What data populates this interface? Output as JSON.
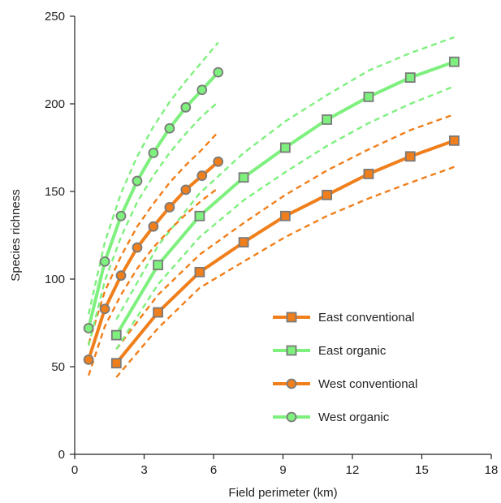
{
  "chart_data": {
    "type": "line",
    "xlabel": "Field perimeter (km)",
    "ylabel": "Species richness",
    "xlim": [
      0,
      18
    ],
    "ylim": [
      0,
      250
    ],
    "xticks": [
      0,
      3,
      6,
      9,
      12,
      15,
      18
    ],
    "yticks": [
      0,
      50,
      100,
      150,
      200,
      250
    ],
    "grid": false,
    "legend_position": "lower-right",
    "colors": {
      "orange": "#f07f1b",
      "green": "#7ef07e",
      "marker_edge": "#7a7a7a"
    },
    "series": [
      {
        "name": "East conventional",
        "color": "#f07f1b",
        "marker": "square",
        "x": [
          1.8,
          3.6,
          5.4,
          7.3,
          9.1,
          10.9,
          12.7,
          14.5,
          16.4
        ],
        "y": [
          52,
          81,
          104,
          121,
          136,
          148,
          160,
          170,
          179
        ],
        "lower": [
          44,
          72,
          95,
          110,
          124,
          136,
          146,
          155,
          164
        ],
        "upper": [
          60,
          91,
          114,
          132,
          148,
          162,
          174,
          185,
          194
        ]
      },
      {
        "name": "East organic",
        "color": "#7ef07e",
        "marker": "square",
        "x": [
          1.8,
          3.6,
          5.4,
          7.3,
          9.1,
          10.9,
          12.7,
          14.5,
          16.4
        ],
        "y": [
          68,
          108,
          136,
          158,
          175,
          191,
          204,
          215,
          224
        ],
        "lower": [
          60,
          97,
          124,
          145,
          161,
          176,
          189,
          200,
          210
        ],
        "upper": [
          77,
          119,
          149,
          172,
          190,
          205,
          219,
          229,
          238
        ]
      },
      {
        "name": "West conventional",
        "color": "#f07f1b",
        "marker": "circle",
        "x": [
          0.6,
          1.3,
          2.0,
          2.7,
          3.4,
          4.1,
          4.8,
          5.5,
          6.2
        ],
        "y": [
          54,
          83,
          102,
          118,
          130,
          141,
          151,
          159,
          167
        ],
        "lower": [
          45,
          73,
          91,
          106,
          118,
          128,
          137,
          145,
          152
        ],
        "upper": [
          63,
          93,
          113,
          130,
          143,
          155,
          165,
          174,
          184
        ]
      },
      {
        "name": "West organic",
        "color": "#7ef07e",
        "marker": "circle",
        "x": [
          0.6,
          1.3,
          2.0,
          2.7,
          3.4,
          4.1,
          4.8,
          5.5,
          6.2
        ],
        "y": [
          72,
          110,
          136,
          156,
          172,
          186,
          198,
          208,
          218
        ],
        "lower": [
          62,
          99,
          124,
          144,
          159,
          172,
          183,
          193,
          201
        ],
        "upper": [
          80,
          121,
          149,
          170,
          187,
          201,
          213,
          224,
          235
        ]
      }
    ]
  }
}
